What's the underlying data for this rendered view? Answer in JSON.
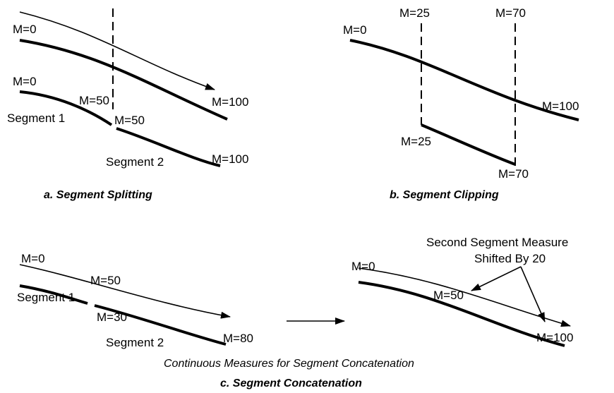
{
  "panel_a": {
    "top_start": "M=0",
    "top_end": "M=100",
    "bottom_start": "M=0",
    "seg1_end": "M=50",
    "seg1_label": "Segment 1",
    "seg2_start": "M=50",
    "seg2_label": "Segment 2",
    "seg2_end": "M=100",
    "caption": "a. Segment Splitting"
  },
  "panel_b": {
    "clip_start_label": "M=25",
    "clip_end_label": "M=70",
    "line_start": "M=0",
    "line_end": "M=100",
    "clipped_start": "M=25",
    "clipped_end": "M=70",
    "caption": "b. Segment Clipping"
  },
  "panel_c_left": {
    "seg1_start": "M=0",
    "seg1_end": "M=50",
    "seg1_label": "Segment 1",
    "seg2_start": "M=30",
    "seg2_label": "Segment 2",
    "seg2_end": "M=80"
  },
  "panel_c_right": {
    "start": "M=0",
    "mid": "M=50",
    "end": "M=100",
    "annotation_line1": "Second Segment Measure",
    "annotation_line2": "Shifted By 20"
  },
  "panel_c": {
    "subcaption": "Continuous Measures for Segment Concatenation",
    "caption": "c. Segment Concatenation"
  }
}
